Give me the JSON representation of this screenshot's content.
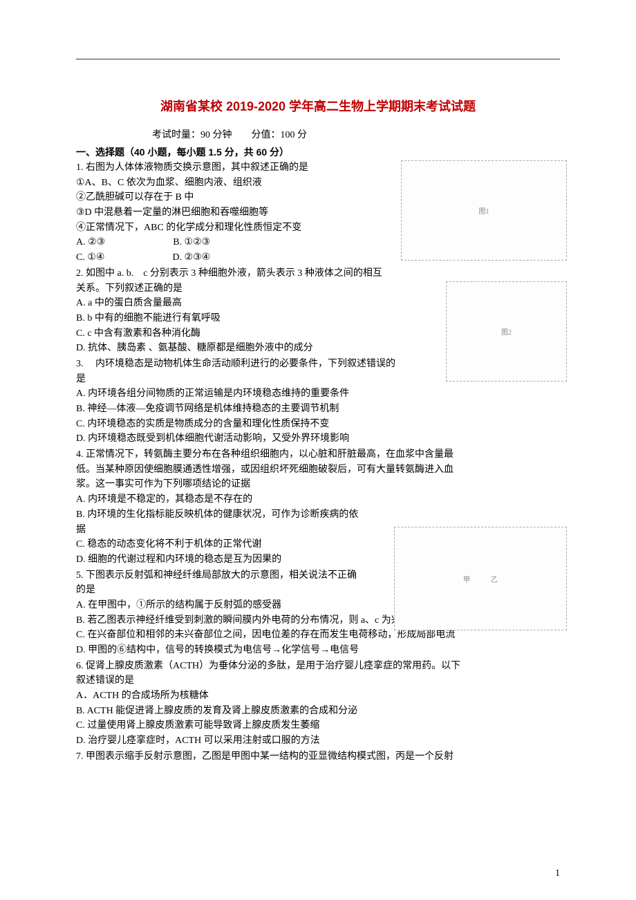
{
  "page": {
    "title": "湖南省某校 2019-2020 学年高二生物上学期期末考试试题",
    "exam_info": "考试时量：90 分钟  分值：100 分",
    "section_header": "一、选择题（40 小题，每小题 1.5 分，共 60 分）",
    "page_number": "1",
    "title_color": "#c00000",
    "title_fontsize": 18,
    "body_fontsize": 14
  },
  "questions": [
    {
      "num": "1.",
      "lines": [
        "右图为人体体液物质交换示意图，其中叙述正确的是",
        "①A、B、C 依次为血浆、细胞内液、组织液",
        "②乙酰胆碱可以存在于 B 中",
        "③D 中混悬着一定量的淋巴细胞和吞噬细胞等",
        "④正常情况下，ABC 的化学成分和理化性质恒定不变",
        "A. ②③       B.  ①②③",
        "C. ①④       D.  ②③④"
      ],
      "wrap": "wrap1"
    },
    {
      "num": "2.",
      "lines": [
        "如图中 a.  b. c 分别表示 3 种细胞外液，箭头表示 3 种液体之间的相互",
        "关系。下列叙述正确的是",
        "A.  a 中的蛋白质含量最高",
        "B.  b 中有的细胞不能进行有氧呼吸",
        "C.  c 中含有激素和各种消化酶",
        "D.  抗体、胰岛素 、氨基酸、糖原都是细胞外液中的成分"
      ],
      "wrap": "wrap2"
    },
    {
      "num": "3.",
      "lines": [
        " 内环境稳态是动物机体生命活动顺利进行的必要条件，下列叙述错误的",
        "是",
        "A.  内环境各组分间物质的正常运输是内环境稳态维持的重要条件",
        "B.  神经—体液—免疫调节网络是机体维持稳态的主要调节机制",
        "C.  内环境稳态的实质是物质成分的含量和理化性质保持不变",
        "D.  内环境稳态既受到机体细胞代谢活动影响，又受外界环境影响"
      ],
      "wrap": ""
    },
    {
      "num": "4.",
      "lines": [
        "正常情况下，转氨酶主要分布在各种组织细胞内，以心脏和肝脏最高，在血浆中含量最",
        "低。当某种原因使细胞膜通透性增强，或因组织坏死细胞破裂后，可有大量转氨酶进入血",
        "浆。这一事实可作为下列哪项结论的证据",
        "A.  内环境是不稳定的，其稳态是不存在的",
        "B.  内环境的生化指标能反映机体的健康状况，可作为诊断疾病的依",
        "据",
        "C.  稳态的动态变化将不利于机体的正常代谢",
        "D.  细胞的代谢过程和内环境的稳态是互为因果的"
      ],
      "wrap": "wrap3",
      "wrapStart": 3
    },
    {
      "num": "5.",
      "lines": [
        "下图表示反射弧和神经纤维局部放大的示意图，相关说法不正确",
        "的是",
        "A.  在甲图中，①所示的结构属于反射弧的感受器",
        "B.  若乙图表示神经纤维受到刺激的瞬间膜内外电荷的分布情况，则 a、c 为兴奋部位",
        "C.  在兴奋部位和相邻的未兴奋部位之间，因电位差的存在而发生电荷移动，形成局部电流",
        "D.  甲图的⑥结构中，信号的转换模式为电信号→化学信号→电信号"
      ],
      "wrap": "wrap3",
      "wrapEnd": 1
    },
    {
      "num": "6.",
      "lines": [
        "促肾上腺皮质激素（ACTH）为垂体分泌的多肽，是用于治疗婴儿痉挛症的常用药。以下",
        "叙述错误的是",
        "A．ACTH 的合成场所为核糖体",
        "B.  ACTH 能促进肾上腺皮质的发育及肾上腺皮质激素的合成和分泌",
        "C.  过量使用肾上腺皮质激素可能导致肾上腺皮质发生萎缩",
        "D.  治疗婴儿痉挛症时，ACTH 可以采用注射或口服的方法"
      ],
      "wrap": ""
    },
    {
      "num": "7.",
      "lines": [
        "甲图表示缩手反射示意图，乙图是甲图中某一结构的亚显微结构模式图，丙是一个反射"
      ],
      "wrap": ""
    }
  ],
  "figures": {
    "fig1": "图1",
    "fig2": "图2",
    "fig3": "甲   乙"
  }
}
